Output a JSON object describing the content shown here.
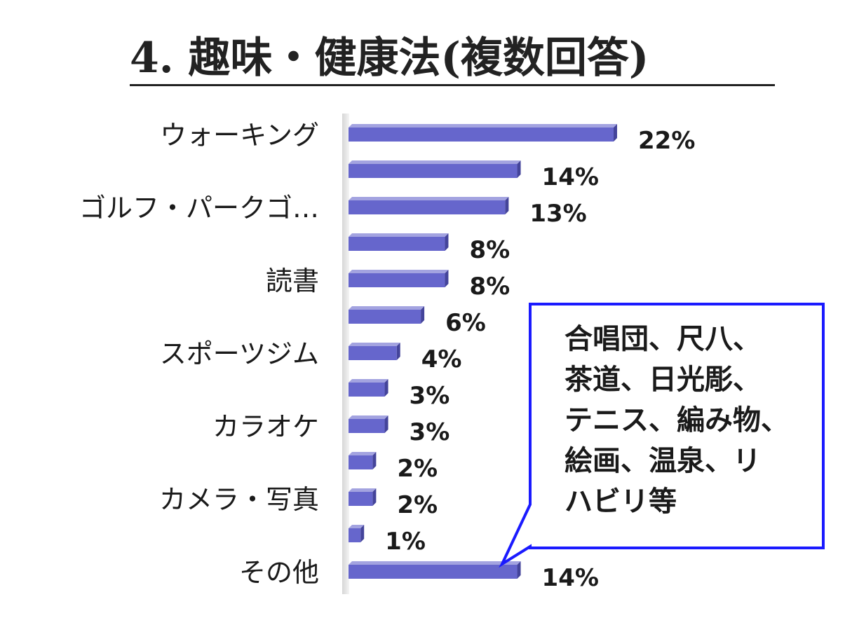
{
  "chart_data": {
    "type": "bar",
    "orientation": "horizontal",
    "title": "4. 趣味・健康法(複数回答)",
    "categories": [
      "ウォーキング",
      "",
      "ゴルフ・パークゴ…",
      "",
      "読書",
      "",
      "スポーツジム",
      "",
      "カラオケ",
      "",
      "カメラ・写真",
      "",
      "その他"
    ],
    "values": [
      22,
      14,
      13,
      8,
      8,
      6,
      4,
      3,
      3,
      2,
      2,
      1,
      14
    ],
    "value_labels": [
      "22%",
      "14%",
      "13%",
      "8%",
      "8%",
      "6%",
      "4%",
      "3%",
      "3%",
      "2%",
      "2%",
      "1%",
      "14%"
    ],
    "unit": "%",
    "xlim": [
      0,
      22
    ],
    "grid": false,
    "legend": "none",
    "bar_color": "#6666cc",
    "annotation": {
      "text": "合唱団、尺八、\n茶道、日光彫、\nテニス、編み物、\n絵画、温泉、リ\nハビリ等",
      "points_to": "その他",
      "border_color": "#1a1aff"
    }
  }
}
